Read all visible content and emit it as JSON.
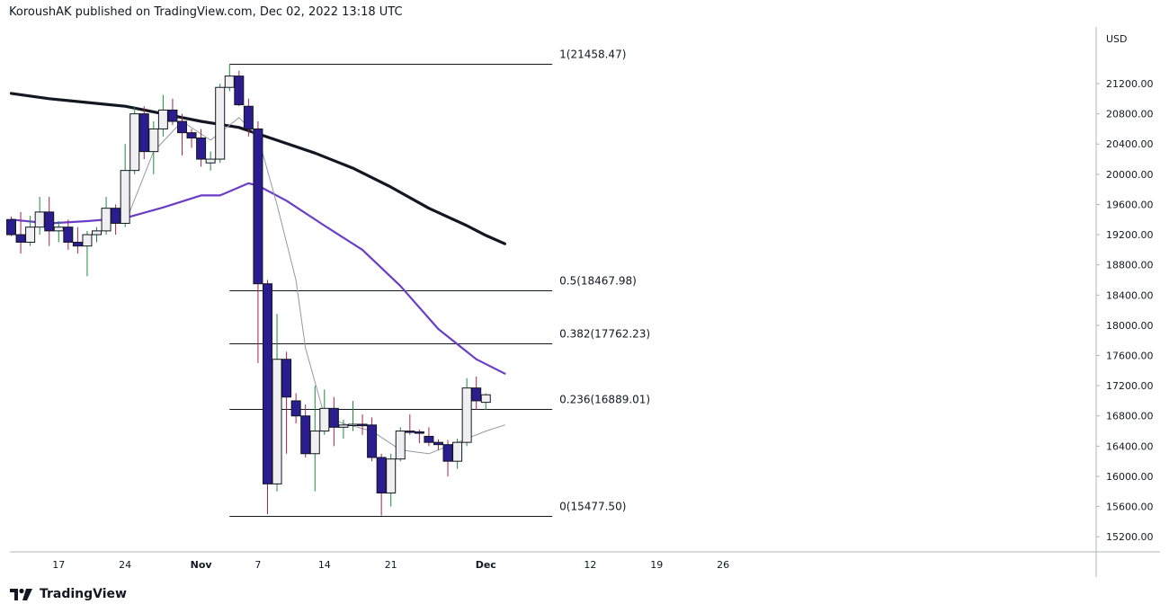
{
  "header": {
    "publisher": "KoroushAK published on TradingView.com, Dec 02, 2022 13:18 UTC"
  },
  "brand": {
    "name": "TradingView",
    "logo_icon": "tradingview-logo-icon"
  },
  "chart_data": {
    "type": "candlestick",
    "instrument_currency": "USD",
    "ylim": [
      15000,
      21950
    ],
    "y_ticks": [
      15200,
      15600,
      16000,
      16400,
      16800,
      17200,
      17600,
      18000,
      18400,
      18800,
      19200,
      19600,
      20000,
      20400,
      20800,
      21200
    ],
    "x_ticks": [
      {
        "label": "17",
        "date": "2022-10-17"
      },
      {
        "label": "24",
        "date": "2022-10-24"
      },
      {
        "label": "Nov",
        "date": "2022-11-01"
      },
      {
        "label": "7",
        "date": "2022-11-07"
      },
      {
        "label": "14",
        "date": "2022-11-14"
      },
      {
        "label": "21",
        "date": "2022-11-21"
      },
      {
        "label": "Dec",
        "date": "2022-12-01"
      },
      {
        "label": "12",
        "date": "2022-12-12"
      },
      {
        "label": "19",
        "date": "2022-12-19"
      },
      {
        "label": "26",
        "date": "2022-12-26"
      }
    ],
    "candles": [
      {
        "date": "2022-10-12",
        "o": 19400,
        "h": 19440,
        "l": 19180,
        "c": 19200
      },
      {
        "date": "2022-10-13",
        "o": 19200,
        "h": 19500,
        "l": 18950,
        "c": 19100
      },
      {
        "date": "2022-10-14",
        "o": 19100,
        "h": 19450,
        "l": 19050,
        "c": 19300
      },
      {
        "date": "2022-10-15",
        "o": 19300,
        "h": 19700,
        "l": 19200,
        "c": 19500
      },
      {
        "date": "2022-10-16",
        "o": 19500,
        "h": 19700,
        "l": 19050,
        "c": 19250
      },
      {
        "date": "2022-10-17",
        "o": 19250,
        "h": 19380,
        "l": 19100,
        "c": 19300
      },
      {
        "date": "2022-10-18",
        "o": 19300,
        "h": 19400,
        "l": 19000,
        "c": 19100
      },
      {
        "date": "2022-10-19",
        "o": 19100,
        "h": 19300,
        "l": 18950,
        "c": 19050
      },
      {
        "date": "2022-10-20",
        "o": 19050,
        "h": 19250,
        "l": 18650,
        "c": 19200
      },
      {
        "date": "2022-10-21",
        "o": 19200,
        "h": 19300,
        "l": 19100,
        "c": 19250
      },
      {
        "date": "2022-10-22",
        "o": 19250,
        "h": 19700,
        "l": 19200,
        "c": 19550
      },
      {
        "date": "2022-10-23",
        "o": 19550,
        "h": 19600,
        "l": 19200,
        "c": 19350
      },
      {
        "date": "2022-10-24",
        "o": 19350,
        "h": 20400,
        "l": 19300,
        "c": 20050
      },
      {
        "date": "2022-10-25",
        "o": 20050,
        "h": 20900,
        "l": 20000,
        "c": 20800
      },
      {
        "date": "2022-10-26",
        "o": 20800,
        "h": 20900,
        "l": 20200,
        "c": 20300
      },
      {
        "date": "2022-10-27",
        "o": 20300,
        "h": 20700,
        "l": 20000,
        "c": 20600
      },
      {
        "date": "2022-10-28",
        "o": 20600,
        "h": 21050,
        "l": 20500,
        "c": 20850
      },
      {
        "date": "2022-10-29",
        "o": 20850,
        "h": 21000,
        "l": 20650,
        "c": 20700
      },
      {
        "date": "2022-10-30",
        "o": 20700,
        "h": 20800,
        "l": 20250,
        "c": 20550
      },
      {
        "date": "2022-10-31",
        "o": 20550,
        "h": 20600,
        "l": 20350,
        "c": 20480
      },
      {
        "date": "2022-11-01",
        "o": 20480,
        "h": 20600,
        "l": 20100,
        "c": 20200
      },
      {
        "date": "2022-11-02",
        "o": 20150,
        "h": 20300,
        "l": 20050,
        "c": 20200
      },
      {
        "date": "2022-11-03",
        "o": 20200,
        "h": 21200,
        "l": 20150,
        "c": 21150
      },
      {
        "date": "2022-11-04",
        "o": 21150,
        "h": 21450,
        "l": 21100,
        "c": 21300
      },
      {
        "date": "2022-11-05",
        "o": 21300,
        "h": 21370,
        "l": 20900,
        "c": 20920
      },
      {
        "date": "2022-11-06",
        "o": 20900,
        "h": 21000,
        "l": 20500,
        "c": 20600
      },
      {
        "date": "2022-11-07",
        "o": 20600,
        "h": 20700,
        "l": 17500,
        "c": 18550
      },
      {
        "date": "2022-11-08",
        "o": 18550,
        "h": 18600,
        "l": 15500,
        "c": 15900
      },
      {
        "date": "2022-11-09",
        "o": 15900,
        "h": 18150,
        "l": 15800,
        "c": 17550
      },
      {
        "date": "2022-11-10",
        "o": 17550,
        "h": 17650,
        "l": 16300,
        "c": 17050
      },
      {
        "date": "2022-11-11",
        "o": 17000,
        "h": 17100,
        "l": 16700,
        "c": 16800
      },
      {
        "date": "2022-11-12",
        "o": 16800,
        "h": 16950,
        "l": 16250,
        "c": 16300
      },
      {
        "date": "2022-11-13",
        "o": 16300,
        "h": 17200,
        "l": 15800,
        "c": 16600
      },
      {
        "date": "2022-11-14",
        "o": 16600,
        "h": 17150,
        "l": 16550,
        "c": 16900
      },
      {
        "date": "2022-11-15",
        "o": 16900,
        "h": 17050,
        "l": 16400,
        "c": 16650
      },
      {
        "date": "2022-11-16",
        "o": 16650,
        "h": 16750,
        "l": 16500,
        "c": 16680
      },
      {
        "date": "2022-11-17",
        "o": 16680,
        "h": 17000,
        "l": 16600,
        "c": 16690
      },
      {
        "date": "2022-11-18",
        "o": 16690,
        "h": 16820,
        "l": 16550,
        "c": 16670
      },
      {
        "date": "2022-11-19",
        "o": 16680,
        "h": 16780,
        "l": 16200,
        "c": 16250
      },
      {
        "date": "2022-11-20",
        "o": 16250,
        "h": 16300,
        "l": 15480,
        "c": 15780
      },
      {
        "date": "2022-11-21",
        "o": 15780,
        "h": 16300,
        "l": 15600,
        "c": 16230
      },
      {
        "date": "2022-11-22",
        "o": 16230,
        "h": 16650,
        "l": 16200,
        "c": 16600
      },
      {
        "date": "2022-11-23",
        "o": 16600,
        "h": 16820,
        "l": 16550,
        "c": 16590
      },
      {
        "date": "2022-11-24",
        "o": 16590,
        "h": 16620,
        "l": 16440,
        "c": 16570
      },
      {
        "date": "2022-11-25",
        "o": 16530,
        "h": 16650,
        "l": 16400,
        "c": 16450
      },
      {
        "date": "2022-11-26",
        "o": 16450,
        "h": 16490,
        "l": 16350,
        "c": 16420
      },
      {
        "date": "2022-11-27",
        "o": 16420,
        "h": 16480,
        "l": 16000,
        "c": 16200
      },
      {
        "date": "2022-11-28",
        "o": 16200,
        "h": 16500,
        "l": 16100,
        "c": 16450
      },
      {
        "date": "2022-11-29",
        "o": 16450,
        "h": 17300,
        "l": 16400,
        "c": 17170
      },
      {
        "date": "2022-11-30",
        "o": 17170,
        "h": 17320,
        "l": 16880,
        "c": 17000
      },
      {
        "date": "2022-12-01",
        "o": 16980,
        "h": 17100,
        "l": 16880,
        "c": 17080
      }
    ],
    "fib_retracement": {
      "start_date": "2022-11-04",
      "end_date": "2022-12-08",
      "levels": [
        {
          "label": "1(21458.47)",
          "value": 21458.47
        },
        {
          "label": "0.5(18467.98)",
          "value": 18467.98
        },
        {
          "label": "0.382(17762.23)",
          "value": 17762.23
        },
        {
          "label": "0.236(16889.01)",
          "value": 16889.01
        },
        {
          "label": "0(15477.50)",
          "value": 15477.5
        }
      ]
    },
    "moving_averages": [
      {
        "color": "#131722",
        "width": 3.2,
        "points": [
          [
            "2022-10-12",
            21070
          ],
          [
            "2022-10-16",
            21000
          ],
          [
            "2022-10-20",
            20950
          ],
          [
            "2022-10-24",
            20900
          ],
          [
            "2022-10-28",
            20800
          ],
          [
            "2022-11-01",
            20700
          ],
          [
            "2022-11-05",
            20620
          ],
          [
            "2022-11-09",
            20450
          ],
          [
            "2022-11-13",
            20280
          ],
          [
            "2022-11-17",
            20080
          ],
          [
            "2022-11-21",
            19830
          ],
          [
            "2022-11-25",
            19550
          ],
          [
            "2022-11-29",
            19320
          ],
          [
            "2022-12-01",
            19190
          ],
          [
            "2022-12-03",
            19080
          ]
        ]
      },
      {
        "color": "#6a3dc6",
        "width": 2.2,
        "points": [
          [
            "2022-10-12",
            19400
          ],
          [
            "2022-10-16",
            19350
          ],
          [
            "2022-10-20",
            19380
          ],
          [
            "2022-10-24",
            19420
          ],
          [
            "2022-10-28",
            19560
          ],
          [
            "2022-11-01",
            19720
          ],
          [
            "2022-11-03",
            19720
          ],
          [
            "2022-11-06",
            19880
          ],
          [
            "2022-11-07",
            19850
          ],
          [
            "2022-11-10",
            19650
          ],
          [
            "2022-11-14",
            19320
          ],
          [
            "2022-11-18",
            19000
          ],
          [
            "2022-11-22",
            18520
          ],
          [
            "2022-11-26",
            17950
          ],
          [
            "2022-11-30",
            17550
          ],
          [
            "2022-12-03",
            17360
          ]
        ]
      },
      {
        "color": "#9598a1",
        "width": 1,
        "points": [
          [
            "2022-10-24",
            19350
          ],
          [
            "2022-10-27",
            20300
          ],
          [
            "2022-10-30",
            20700
          ],
          [
            "2022-11-02",
            20450
          ],
          [
            "2022-11-05",
            20750
          ],
          [
            "2022-11-07",
            20500
          ],
          [
            "2022-11-09",
            19600
          ],
          [
            "2022-11-11",
            18600
          ],
          [
            "2022-11-12",
            17700
          ],
          [
            "2022-11-14",
            16800
          ],
          [
            "2022-11-16",
            16700
          ],
          [
            "2022-11-19",
            16600
          ],
          [
            "2022-11-22",
            16350
          ],
          [
            "2022-11-25",
            16300
          ],
          [
            "2022-11-28",
            16450
          ],
          [
            "2022-12-01",
            16600
          ],
          [
            "2022-12-03",
            16680
          ]
        ]
      }
    ]
  }
}
